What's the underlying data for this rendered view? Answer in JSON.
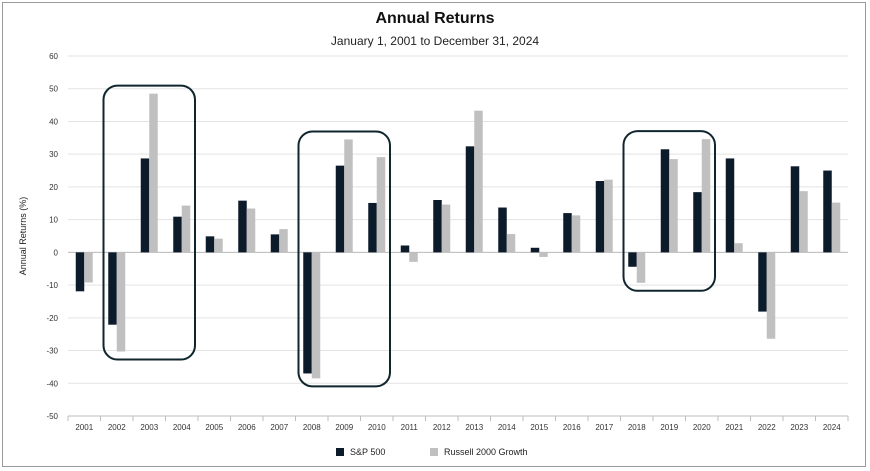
{
  "chart_data": {
    "type": "bar",
    "title": "Annual Returns",
    "subtitle": "January 1, 2001 to December 31, 2024",
    "ylabel": "Annual Returns (%)",
    "ylim": [
      -50,
      60
    ],
    "yticks": [
      -50,
      -40,
      -30,
      -20,
      -10,
      0,
      10,
      20,
      30,
      40,
      50,
      60
    ],
    "grid": true,
    "legend_position": "bottom-center",
    "categories": [
      "2001",
      "2002",
      "2003",
      "2004",
      "2005",
      "2006",
      "2007",
      "2008",
      "2009",
      "2010",
      "2011",
      "2012",
      "2013",
      "2014",
      "2015",
      "2016",
      "2017",
      "2018",
      "2019",
      "2020",
      "2021",
      "2022",
      "2023",
      "2024"
    ],
    "series": [
      {
        "name": "S&P 500",
        "color": "#0c1b2a",
        "values": [
          -11.9,
          -22.1,
          28.7,
          10.9,
          4.9,
          15.8,
          5.5,
          -37.0,
          26.5,
          15.1,
          2.1,
          16.0,
          32.4,
          13.7,
          1.4,
          12.0,
          21.8,
          -4.4,
          31.5,
          18.4,
          28.7,
          -18.1,
          26.3,
          25.0
        ]
      },
      {
        "name": "Russell 2000 Growth",
        "color": "#c0c0c0",
        "values": [
          -9.2,
          -30.3,
          48.5,
          14.3,
          4.2,
          13.4,
          7.1,
          -38.5,
          34.5,
          29.1,
          -2.9,
          14.6,
          43.3,
          5.6,
          -1.4,
          11.3,
          22.2,
          -9.3,
          28.5,
          34.6,
          2.8,
          -26.4,
          18.7,
          15.2
        ]
      }
    ],
    "highlights": [
      {
        "from": "2002",
        "to": "2004"
      },
      {
        "from": "2008",
        "to": "2010"
      },
      {
        "from": "2018",
        "to": "2020"
      }
    ]
  }
}
